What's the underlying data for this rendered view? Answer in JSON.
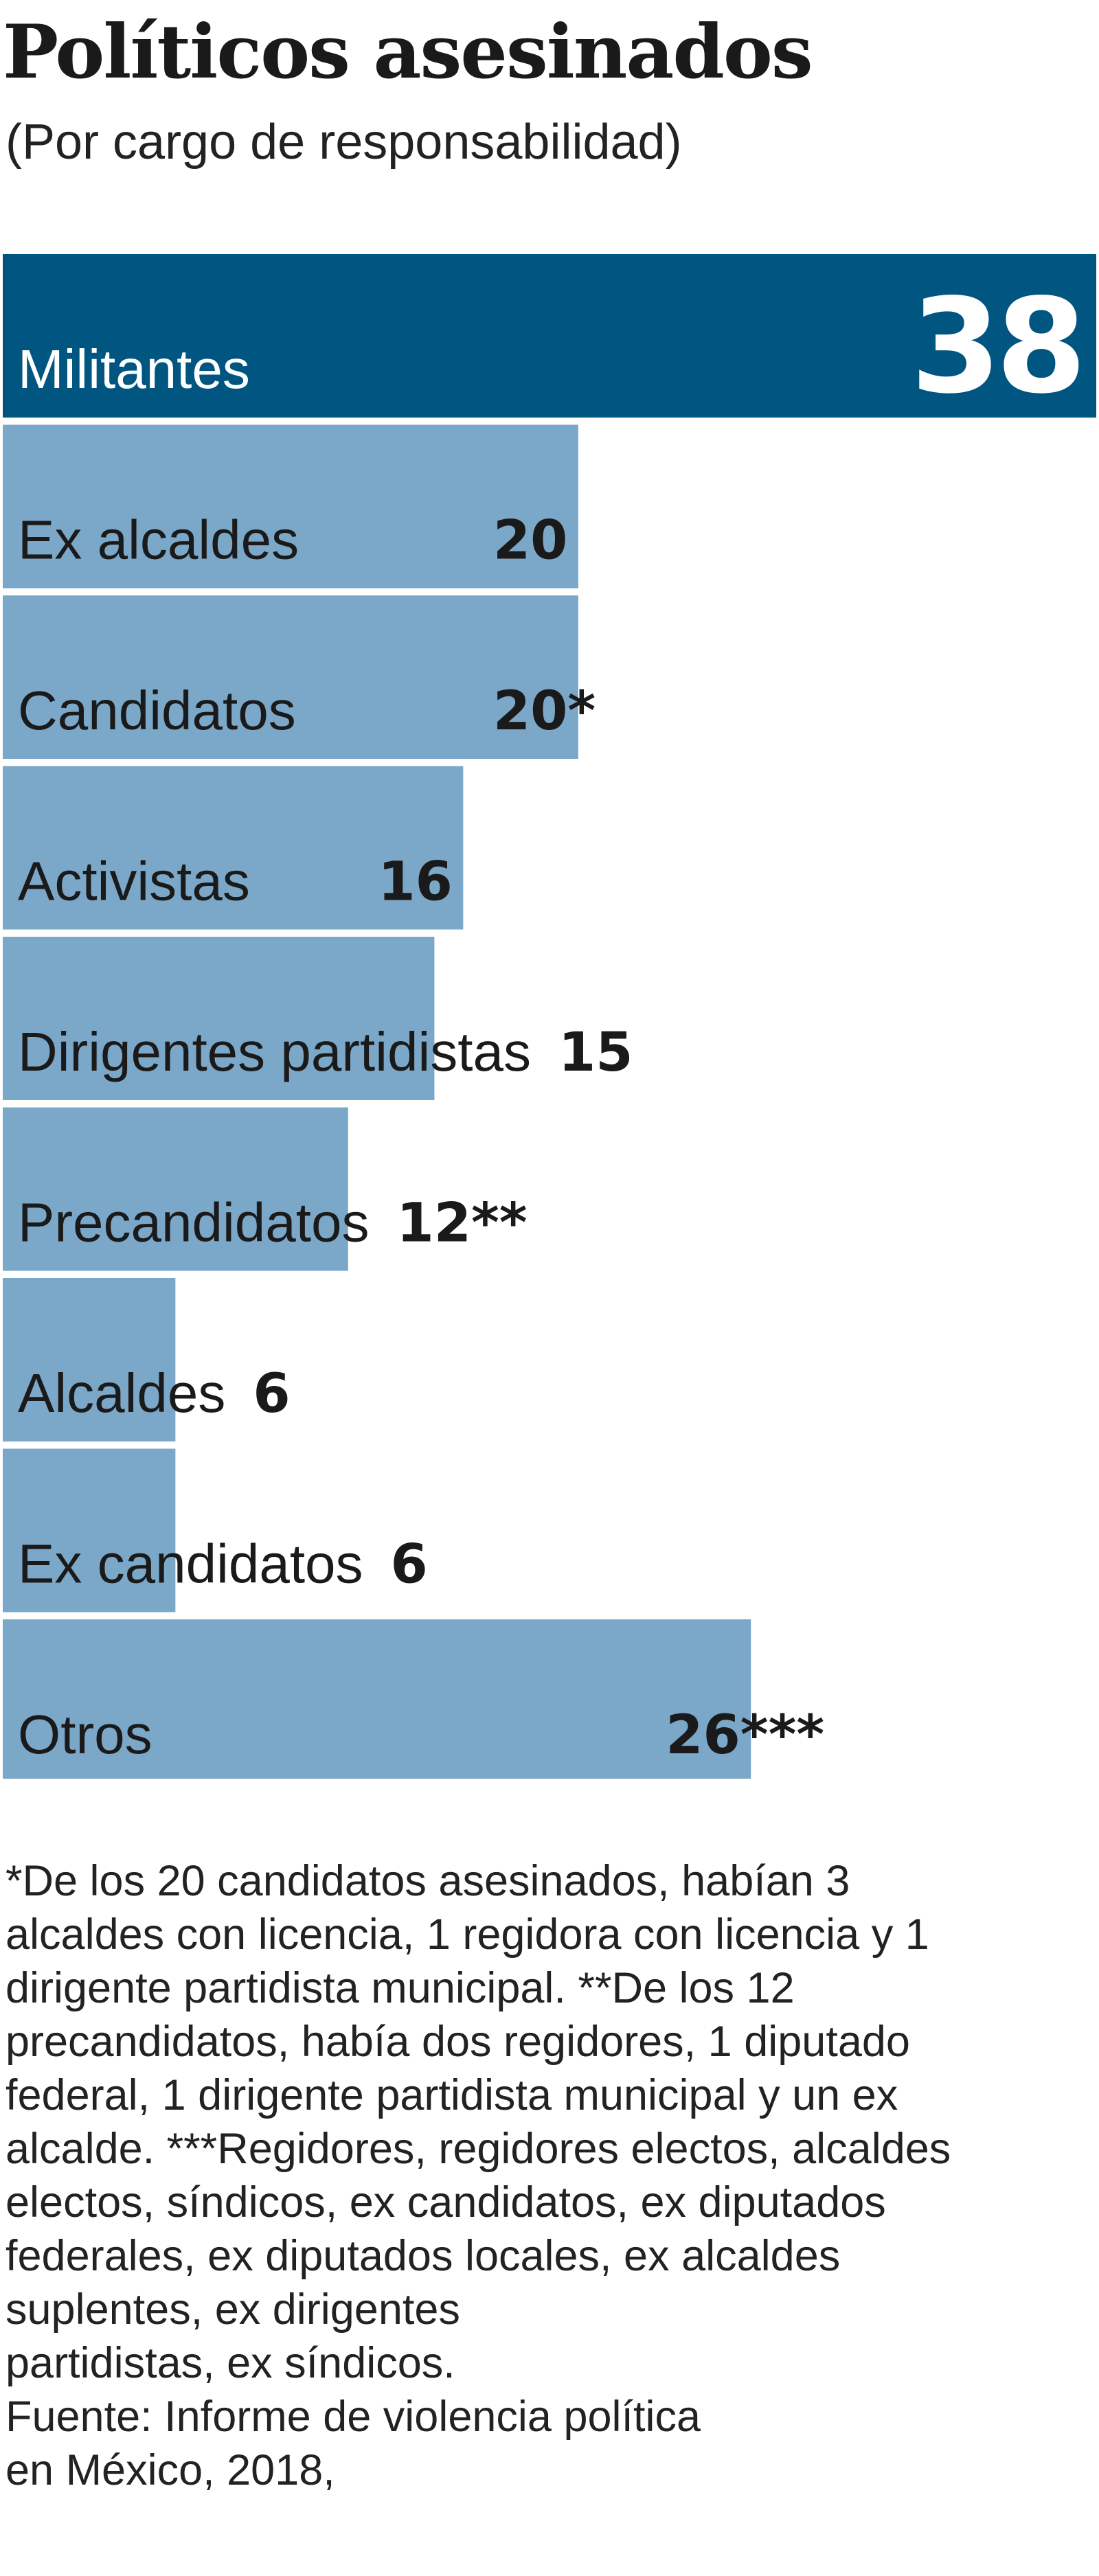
{
  "chart_data": {
    "type": "bar",
    "orientation": "horizontal",
    "title": "Políticos asesinados",
    "subtitle": "(Por cargo de responsabilidad)",
    "xlim": [
      0,
      38
    ],
    "grid": false,
    "categories": [
      "Militantes",
      "Ex alcaldes",
      "Candidatos",
      "Activistas",
      "Dirigentes partidistas",
      "Precandidatos",
      "Alcaldes",
      "Ex candidatos",
      "Otros"
    ],
    "values": [
      38,
      20,
      20,
      16,
      15,
      12,
      6,
      6,
      26
    ],
    "value_labels": [
      "38",
      "20",
      "20*",
      "16",
      "15",
      "12**",
      "6",
      "6",
      "26***"
    ],
    "colors": {
      "highlight_bar": "#005581",
      "bar": "#7ba7c8",
      "highlight_text": "#ffffff",
      "text": "#1a1a1a"
    }
  },
  "footnote_lines": [
    "*De los 20 candidatos asesinados, habían 3",
    "alcaldes con licencia, 1 regidora con licencia y 1",
    "dirigente partidista municipal. **De los 12",
    "precandidatos, había dos regidores, 1 diputado",
    "federal, 1 dirigente partidista municipal y un ex",
    "alcalde. ***Regidores, regidores electos, alcaldes",
    "electos, síndicos, ex candidatos, ex diputados",
    "federales, ex diputados locales, ex alcaldes",
    "suplentes, ex dirigentes",
    "partidistas, ex síndicos."
  ],
  "source_lines": [
    "Fuente: Informe de violencia política",
    "en México, 2018,"
  ]
}
